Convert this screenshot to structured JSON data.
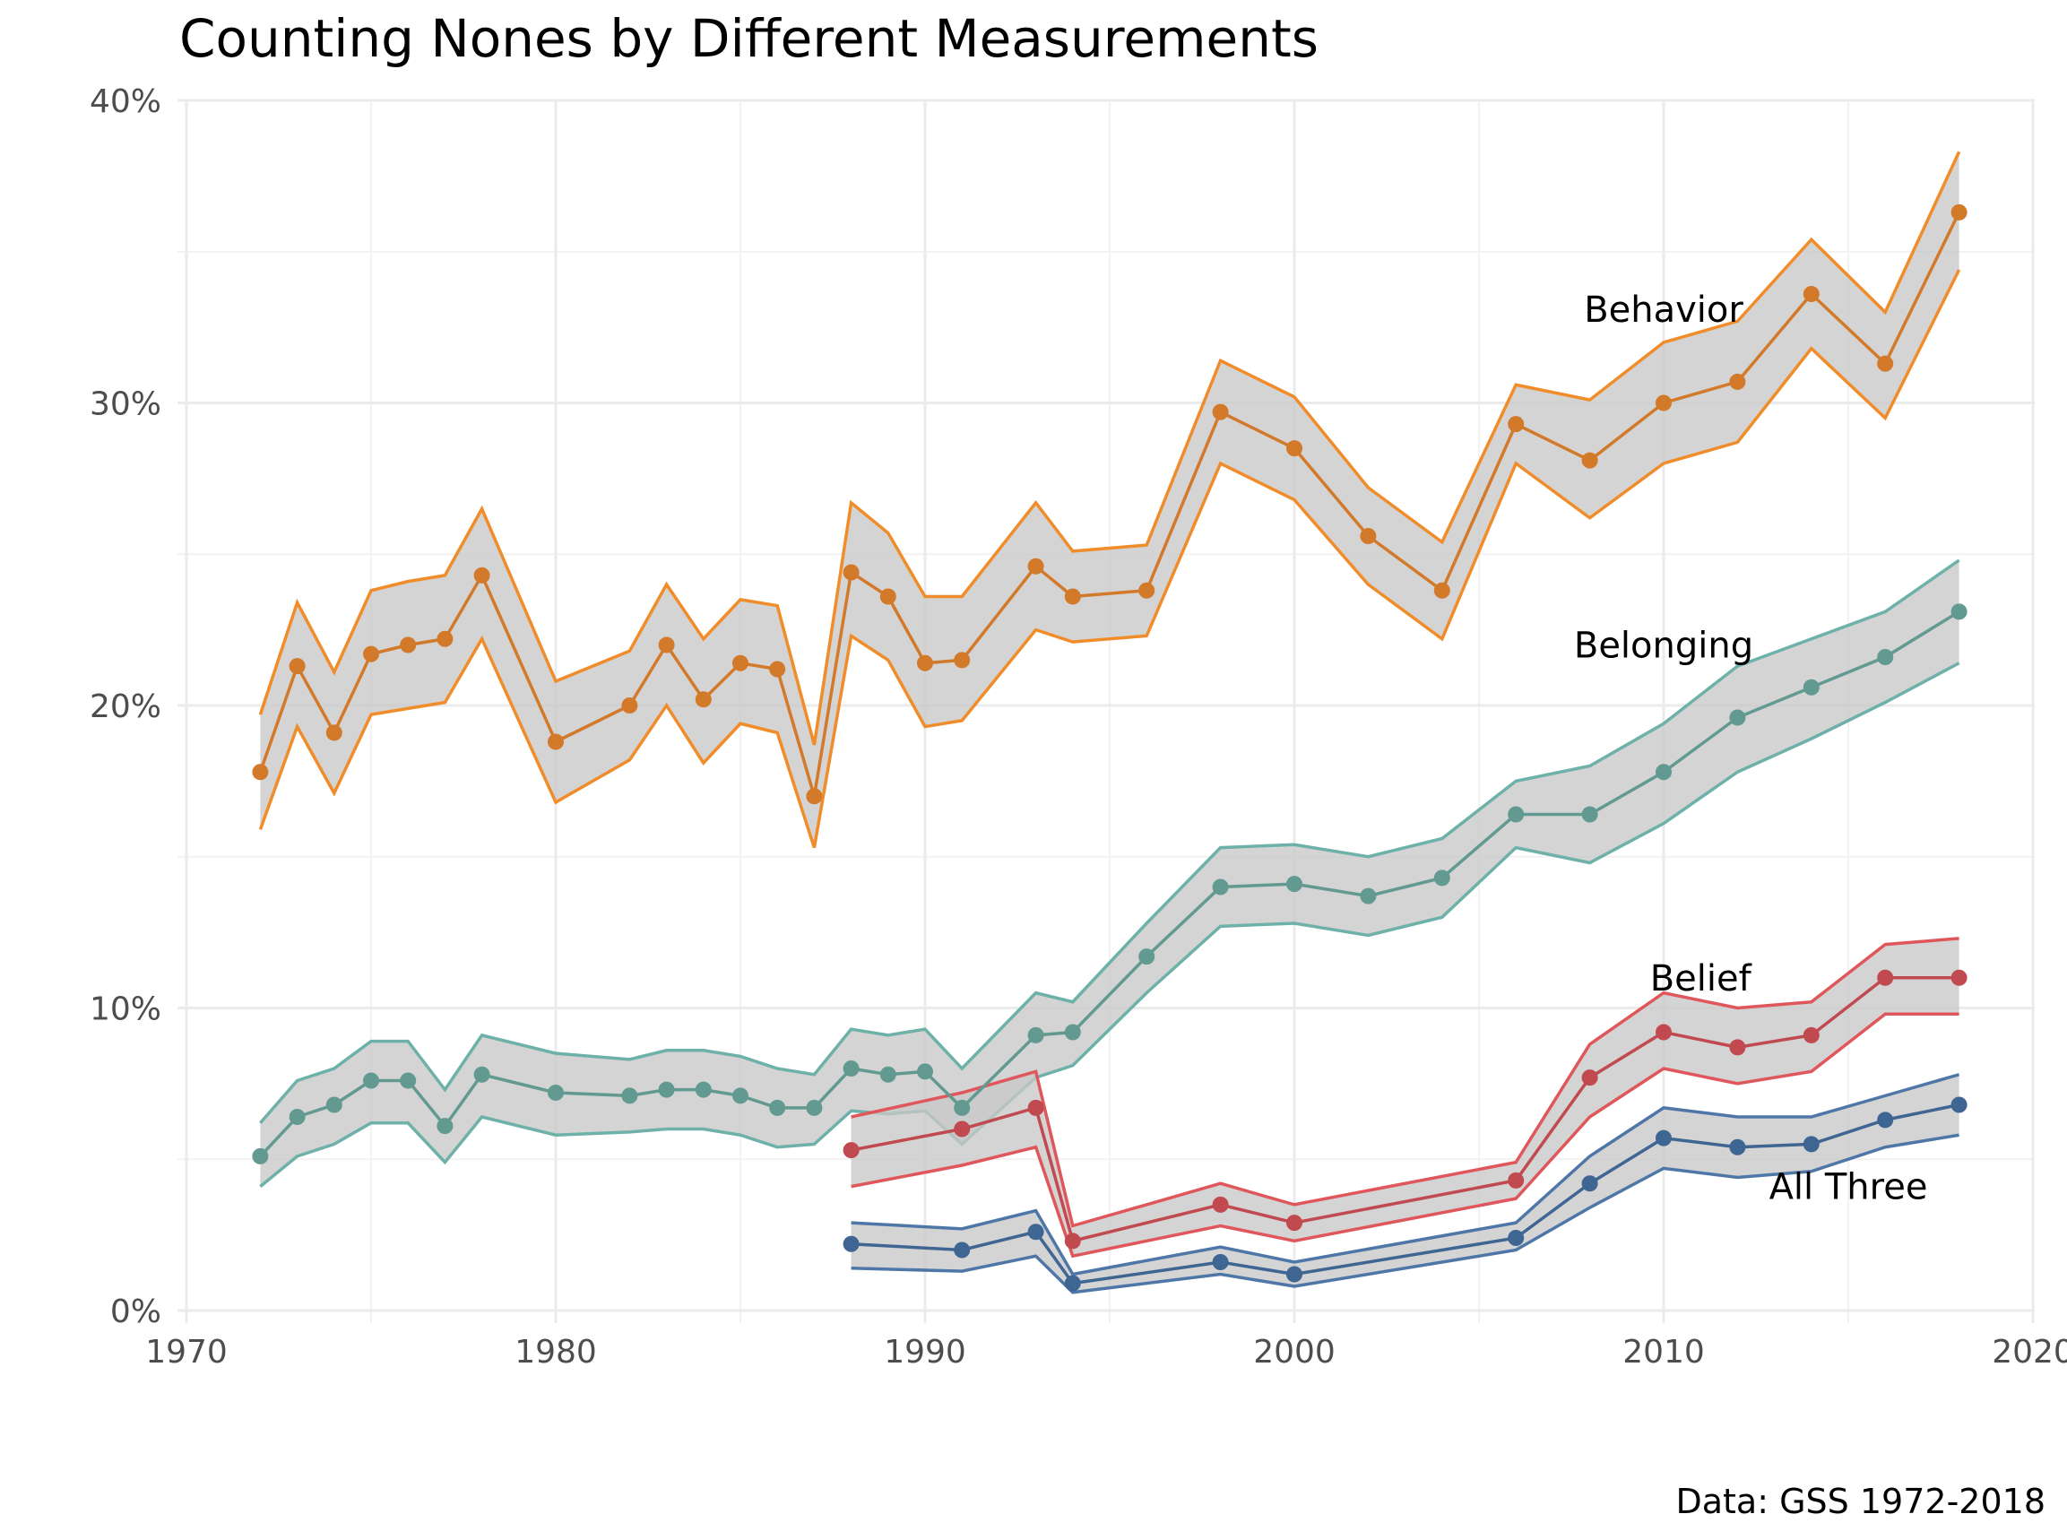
{
  "chart_data": {
    "type": "line",
    "title": "Counting Nones by Different Measurements",
    "caption": "Data: GSS 1972-2018",
    "xlabel": "",
    "ylabel": "",
    "xlim": [
      1970,
      2020
    ],
    "ylim": [
      0,
      0.4
    ],
    "x_ticks": [
      "1970",
      "1980",
      "1990",
      "2000",
      "2010",
      "2020"
    ],
    "y_ticks": [
      "0%",
      "10%",
      "20%",
      "30%",
      "40%"
    ],
    "grid": true,
    "band_fill": "#c8c8c8",
    "series": [
      {
        "name": "Behavior",
        "color": "#f08c2a",
        "point_color": "#d3792a",
        "x": [
          1972,
          1973,
          1974,
          1975,
          1976,
          1977,
          1978,
          1980,
          1982,
          1983,
          1984,
          1985,
          1986,
          1987,
          1988,
          1989,
          1990,
          1991,
          1993,
          1994,
          1996,
          1998,
          2000,
          2002,
          2004,
          2006,
          2008,
          2010,
          2012,
          2014,
          2016,
          2018
        ],
        "y": [
          0.178,
          0.213,
          0.191,
          0.217,
          0.22,
          0.222,
          0.243,
          0.188,
          0.2,
          0.22,
          0.202,
          0.214,
          0.212,
          0.17,
          0.244,
          0.236,
          0.214,
          0.215,
          0.246,
          0.236,
          0.238,
          0.297,
          0.285,
          0.256,
          0.238,
          0.293,
          0.281,
          0.3,
          0.307,
          0.336,
          0.313,
          0.363
        ],
        "lower": [
          0.159,
          0.193,
          0.171,
          0.197,
          0.199,
          0.201,
          0.222,
          0.168,
          0.182,
          0.2,
          0.181,
          0.194,
          0.191,
          0.153,
          0.223,
          0.215,
          0.193,
          0.195,
          0.225,
          0.221,
          0.223,
          0.28,
          0.268,
          0.24,
          0.222,
          0.28,
          0.262,
          0.28,
          0.287,
          0.318,
          0.295,
          0.344
        ],
        "upper": [
          0.197,
          0.234,
          0.211,
          0.238,
          0.241,
          0.243,
          0.265,
          0.208,
          0.218,
          0.24,
          0.222,
          0.235,
          0.233,
          0.187,
          0.267,
          0.257,
          0.236,
          0.236,
          0.267,
          0.251,
          0.253,
          0.314,
          0.302,
          0.272,
          0.254,
          0.306,
          0.301,
          0.32,
          0.327,
          0.354,
          0.33,
          0.383
        ]
      },
      {
        "name": "Belonging",
        "color": "#6db1a9",
        "point_color": "#629a91",
        "x": [
          1972,
          1973,
          1974,
          1975,
          1976,
          1977,
          1978,
          1980,
          1982,
          1983,
          1984,
          1985,
          1986,
          1987,
          1988,
          1989,
          1990,
          1991,
          1993,
          1994,
          1996,
          1998,
          2000,
          2002,
          2004,
          2006,
          2008,
          2010,
          2012,
          2014,
          2016,
          2018
        ],
        "y": [
          0.051,
          0.064,
          0.068,
          0.076,
          0.076,
          0.061,
          0.078,
          0.072,
          0.071,
          0.073,
          0.073,
          0.071,
          0.067,
          0.067,
          0.08,
          0.078,
          0.079,
          0.067,
          0.091,
          0.092,
          0.117,
          0.14,
          0.141,
          0.137,
          0.143,
          0.164,
          0.164,
          0.178,
          0.196,
          0.206,
          0.216,
          0.231
        ],
        "lower": [
          0.041,
          0.051,
          0.055,
          0.062,
          0.062,
          0.049,
          0.064,
          0.058,
          0.059,
          0.06,
          0.06,
          0.058,
          0.054,
          0.055,
          0.066,
          0.065,
          0.066,
          0.055,
          0.077,
          0.081,
          0.105,
          0.127,
          0.128,
          0.124,
          0.13,
          0.153,
          0.148,
          0.161,
          0.178,
          0.189,
          0.201,
          0.214
        ],
        "upper": [
          0.062,
          0.076,
          0.08,
          0.089,
          0.089,
          0.073,
          0.091,
          0.085,
          0.083,
          0.086,
          0.086,
          0.084,
          0.08,
          0.078,
          0.093,
          0.091,
          0.093,
          0.08,
          0.105,
          0.102,
          0.128,
          0.153,
          0.154,
          0.15,
          0.156,
          0.175,
          0.18,
          0.194,
          0.213,
          0.222,
          0.231,
          0.248
        ]
      },
      {
        "name": "Belief",
        "color": "#e0575b",
        "point_color": "#c04a4f",
        "x": [
          1988,
          1991,
          1993,
          1994,
          1998,
          2000,
          2006,
          2008,
          2010,
          2012,
          2014,
          2016,
          2018
        ],
        "y": [
          0.053,
          0.06,
          0.067,
          0.023,
          0.035,
          0.029,
          0.043,
          0.077,
          0.092,
          0.087,
          0.091,
          0.11,
          0.11
        ],
        "lower": [
          0.041,
          0.048,
          0.054,
          0.018,
          0.028,
          0.023,
          0.037,
          0.064,
          0.08,
          0.075,
          0.079,
          0.098,
          0.098
        ],
        "upper": [
          0.064,
          0.072,
          0.079,
          0.028,
          0.042,
          0.035,
          0.049,
          0.088,
          0.105,
          0.1,
          0.102,
          0.121,
          0.123
        ]
      },
      {
        "name": "All Three",
        "color": "#4e77a7",
        "point_color": "#3f6593",
        "x": [
          1988,
          1991,
          1993,
          1994,
          1998,
          2000,
          2006,
          2008,
          2010,
          2012,
          2014,
          2016,
          2018
        ],
        "y": [
          0.022,
          0.02,
          0.026,
          0.009,
          0.016,
          0.012,
          0.024,
          0.042,
          0.057,
          0.054,
          0.055,
          0.063,
          0.068
        ],
        "lower": [
          0.014,
          0.013,
          0.018,
          0.006,
          0.012,
          0.008,
          0.02,
          0.034,
          0.047,
          0.044,
          0.046,
          0.054,
          0.058
        ],
        "upper": [
          0.029,
          0.027,
          0.033,
          0.012,
          0.021,
          0.016,
          0.029,
          0.051,
          0.067,
          0.064,
          0.064,
          0.071,
          0.078
        ]
      }
    ],
    "annotations": [
      {
        "text": "Behavior",
        "series": "Behavior",
        "x": 2010,
        "y": 0.331
      },
      {
        "text": "Belonging",
        "series": "Belonging",
        "x": 2010,
        "y": 0.22
      },
      {
        "text": "Belief",
        "series": "Belief",
        "x": 2011,
        "y": 0.11
      },
      {
        "text": "All Three",
        "series": "All Three",
        "x": 2015,
        "y": 0.041
      }
    ]
  }
}
